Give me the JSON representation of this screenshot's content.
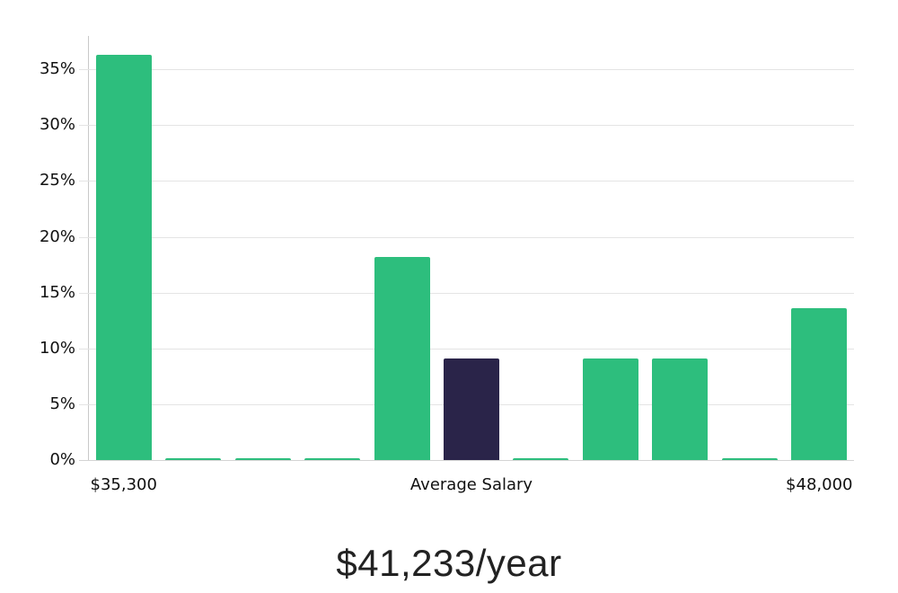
{
  "chart_data": {
    "type": "bar",
    "title": "$41,233/year",
    "xlabel": "",
    "ylabel": "",
    "ylim": [
      0,
      38
    ],
    "grid": true,
    "legend": "none",
    "categories": [
      "$35,300",
      "",
      "",
      "",
      "",
      "Average Salary",
      "",
      "",
      "",
      "",
      "$48,000"
    ],
    "values": [
      36.3,
      0.1,
      0.1,
      0.1,
      18.2,
      9.1,
      0.1,
      9.1,
      9.1,
      0.1,
      13.6
    ],
    "highlight_index": 5,
    "y_ticks": [
      {
        "value": 0,
        "label": "0%"
      },
      {
        "value": 5,
        "label": "5%"
      },
      {
        "value": 10,
        "label": "10%"
      },
      {
        "value": 15,
        "label": "15%"
      },
      {
        "value": 20,
        "label": "20%"
      },
      {
        "value": 25,
        "label": "25%"
      },
      {
        "value": 30,
        "label": "30%"
      },
      {
        "value": 35,
        "label": "35%"
      }
    ],
    "x_ticks": [
      {
        "index": 0,
        "label": "$35,300"
      },
      {
        "index": 5,
        "label": "Average Salary"
      },
      {
        "index": 10,
        "label": "$48,000"
      }
    ],
    "colors": {
      "bar": "#2dbe7d",
      "highlight": "#2a2449",
      "grid": "#e4e4e4",
      "baseline": "#d4d4d4",
      "axis": "#c9c9c9",
      "tick_text": "#111111",
      "title_text": "#222222"
    }
  }
}
